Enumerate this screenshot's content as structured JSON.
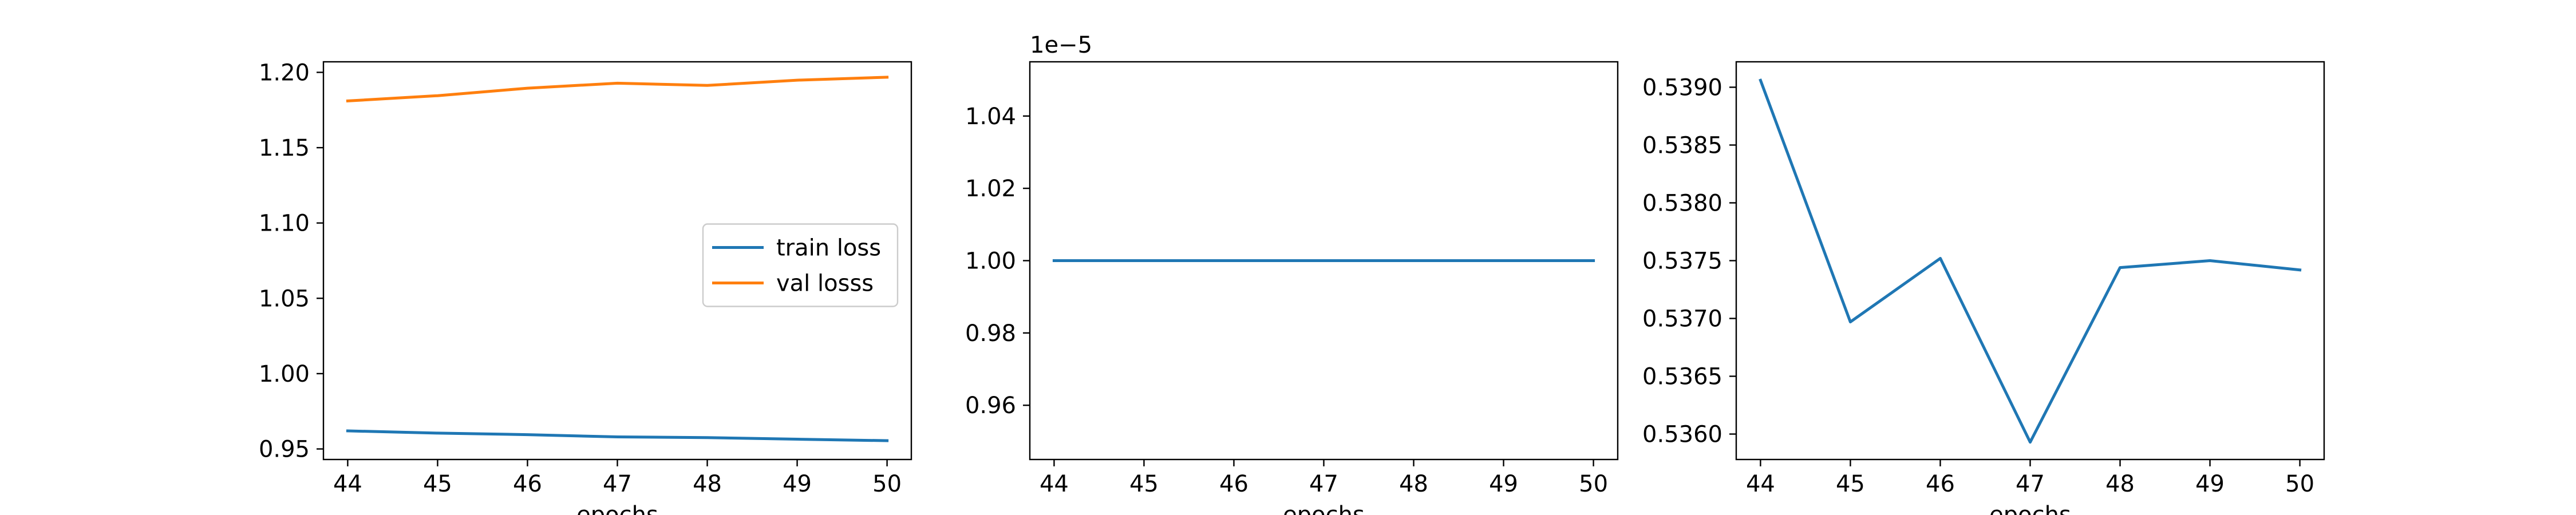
{
  "chart_data": [
    {
      "type": "line",
      "x": [
        44,
        45,
        46,
        47,
        48,
        49,
        50
      ],
      "xticks": [
        "44",
        "45",
        "46",
        "47",
        "48",
        "49",
        "50"
      ],
      "xlabel": "epochs",
      "yticks": [
        "0.95",
        "1.00",
        "1.05",
        "1.10",
        "1.15",
        "1.20"
      ],
      "ylim": [
        0.943,
        1.207
      ],
      "series": [
        {
          "name": "train loss",
          "color": "#1f77b4",
          "values": [
            0.962,
            0.9605,
            0.9595,
            0.958,
            0.9575,
            0.9565,
            0.9555
          ]
        },
        {
          "name": "val losss",
          "color": "#ff7f0e",
          "values": [
            1.181,
            1.1845,
            1.1895,
            1.1928,
            1.1913,
            1.1948,
            1.1968
          ]
        }
      ],
      "legend": "center-right",
      "grid": false
    },
    {
      "type": "line",
      "x": [
        44,
        45,
        46,
        47,
        48,
        49,
        50
      ],
      "xticks": [
        "44",
        "45",
        "46",
        "47",
        "48",
        "49",
        "50"
      ],
      "xlabel": "epochs",
      "yticks": [
        "0.96",
        "0.98",
        "1.00",
        "1.02",
        "1.04"
      ],
      "offset_text": "1e−5",
      "ylim": [
        0.945,
        1.055
      ],
      "series": [
        {
          "color": "#1f77b4",
          "values": [
            1.0,
            1.0,
            1.0,
            1.0,
            1.0,
            1.0,
            1.0
          ]
        }
      ],
      "grid": false
    },
    {
      "type": "line",
      "x": [
        44,
        45,
        46,
        47,
        48,
        49,
        50
      ],
      "xticks": [
        "44",
        "45",
        "46",
        "47",
        "48",
        "49",
        "50"
      ],
      "xlabel": "epochs",
      "yticks": [
        "0.5360",
        "0.5365",
        "0.5370",
        "0.5375",
        "0.5380",
        "0.5385",
        "0.5390"
      ],
      "ylim": [
        0.53578,
        0.53922
      ],
      "series": [
        {
          "color": "#1f77b4",
          "values": [
            0.53906,
            0.53697,
            0.53752,
            0.53593,
            0.53744,
            0.5375,
            0.53742
          ]
        }
      ],
      "grid": false
    }
  ]
}
